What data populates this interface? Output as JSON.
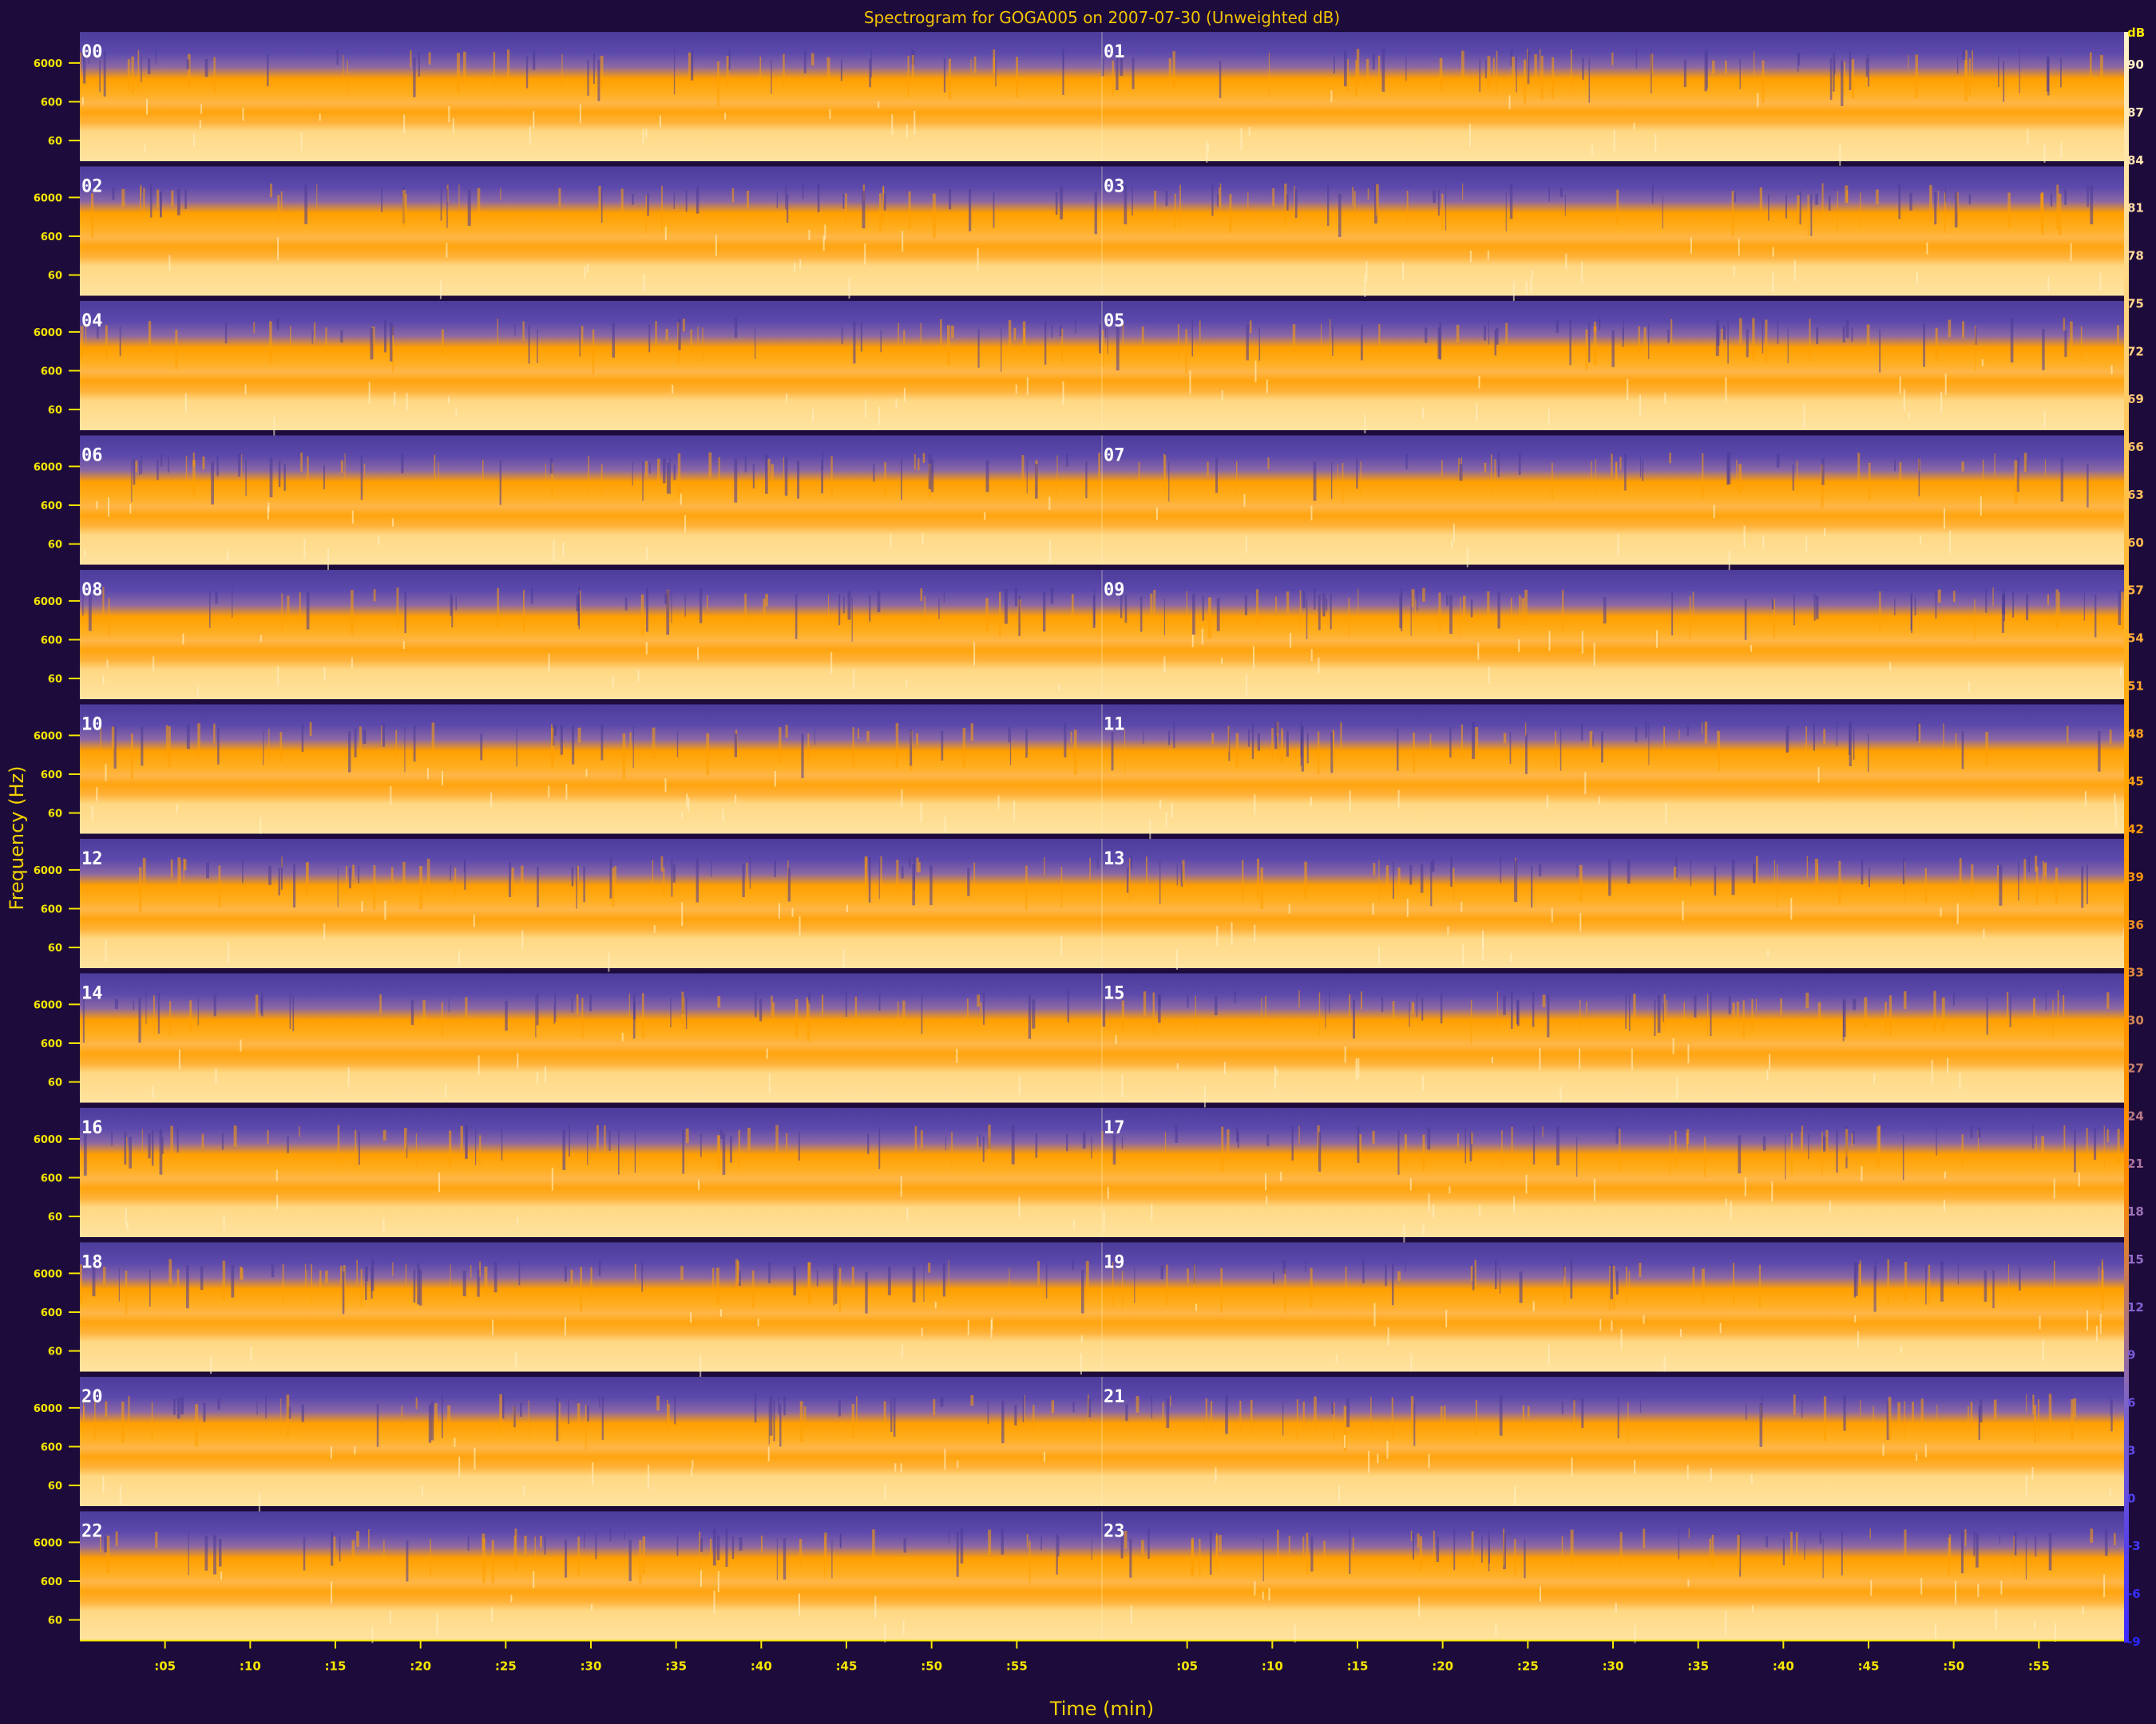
{
  "chart_data": {
    "type": "heatmap",
    "title": "Spectrogram for GOGA005 on 2007-07-30 (Unweighted dB)",
    "xlabel": "Time (min)",
    "ylabel": "Frequency (Hz)",
    "y_tick_labels": [
      "6000",
      "600",
      "60"
    ],
    "x_tick_labels": [
      ":05",
      ":10",
      ":15",
      ":20",
      ":25",
      ":30",
      ":35",
      ":40",
      ":45",
      ":50",
      ":55"
    ],
    "panel_labels": [
      "00",
      "01",
      "02",
      "03",
      "04",
      "05",
      "06",
      "07",
      "08",
      "09",
      "10",
      "11",
      "12",
      "13",
      "14",
      "15",
      "16",
      "17",
      "18",
      "19",
      "20",
      "21",
      "22",
      "23"
    ],
    "colorbar": {
      "unit": "dB",
      "labels": [
        "90",
        "87",
        "84",
        "81",
        "78",
        "75",
        "72",
        "69",
        "66",
        "63",
        "60",
        "57",
        "54",
        "51",
        "48",
        "45",
        "42",
        "39",
        "36",
        "33",
        "30",
        "27",
        "24",
        "21",
        "18",
        "15",
        "12",
        "9",
        "6",
        "3",
        "0",
        "-3",
        "-6",
        "-9"
      ]
    },
    "colors": {
      "background": "#1d0b3b",
      "low": "#5a46a8",
      "mid": "#ff9f00",
      "high": "#ffe08a",
      "text": "#f5e600"
    },
    "grid": false
  }
}
